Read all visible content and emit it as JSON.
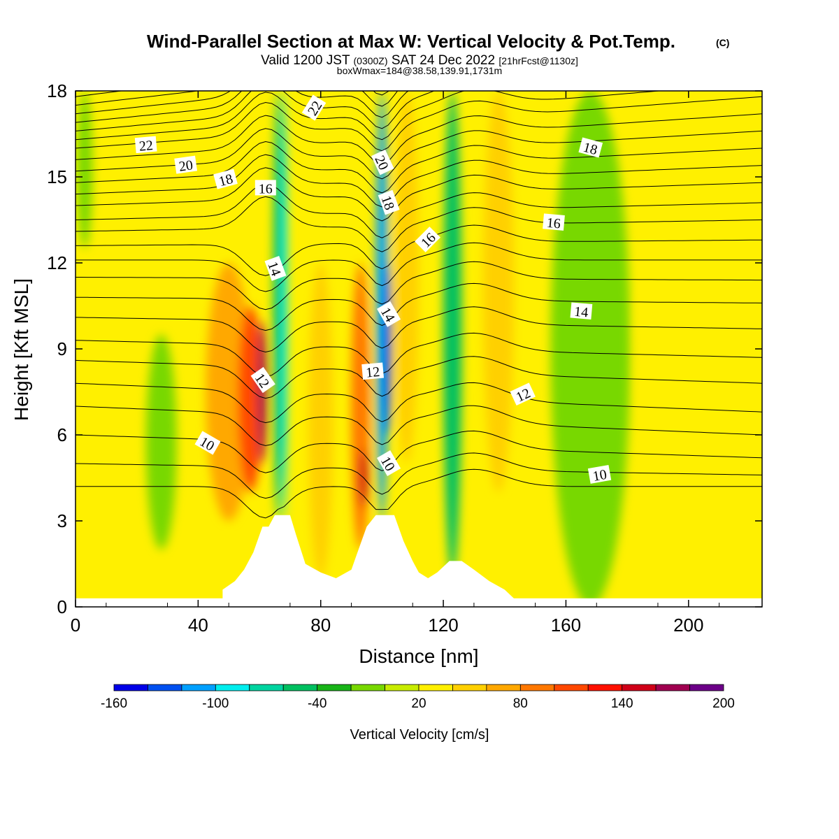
{
  "title": {
    "main": "Wind-Parallel Section at Max W: Vertical Velocity & Pot.Temp.",
    "copyright": "(C)",
    "valid_prefix": "Valid 1200 JST",
    "valid_z": "(0300Z)",
    "valid_date": "SAT 24 Dec 2022",
    "forecast": "[21hrFcst@1130z]",
    "boxmax": "boxWmax=184@38.58,139.91,1731m"
  },
  "chart_data": {
    "type": "heatmap",
    "xlabel": "Distance [nm]",
    "ylabel": "Height [Kft MSL]",
    "xlim": [
      0,
      224
    ],
    "ylim": [
      0,
      18
    ],
    "x_ticks": [
      0,
      40,
      80,
      120,
      160,
      200
    ],
    "y_ticks": [
      0,
      3,
      6,
      9,
      12,
      15,
      18
    ],
    "background_value": 20,
    "w_bands": [
      {
        "x": 3,
        "y0": 12.5,
        "y1": 18,
        "w": 5,
        "value": -20
      },
      {
        "x": 28,
        "y0": 2,
        "y1": 9.5,
        "w": 10,
        "value": -20
      },
      {
        "x": 50,
        "y0": 3,
        "y1": 12,
        "w": 15,
        "value": 60
      },
      {
        "x": 57,
        "y0": 4,
        "y1": 10.5,
        "w": 8,
        "value": 110
      },
      {
        "x": 61,
        "y0": 5,
        "y1": 10,
        "w": 3,
        "value": 175
      },
      {
        "x": 66,
        "y0": 3,
        "y1": 18,
        "w": 3,
        "value": -60
      },
      {
        "x": 68,
        "y0": 3,
        "y1": 18,
        "w": 2,
        "value": -90
      },
      {
        "x": 80,
        "y0": 1,
        "y1": 12,
        "w": 8,
        "value": 40
      },
      {
        "x": 93,
        "y0": 2,
        "y1": 12,
        "w": 6,
        "value": 80
      },
      {
        "x": 94,
        "y0": 3.5,
        "y1": 5.5,
        "w": 3,
        "value": 140
      },
      {
        "x": 100,
        "y0": 3,
        "y1": 18,
        "w": 4,
        "value": -120
      },
      {
        "x": 102,
        "y0": 6,
        "y1": 12,
        "w": 2,
        "value": -150
      },
      {
        "x": 108,
        "y0": 5,
        "y1": 18,
        "w": 8,
        "value": 50
      },
      {
        "x": 123,
        "y0": 1,
        "y1": 18,
        "w": 6,
        "value": -60
      },
      {
        "x": 138,
        "y0": 4,
        "y1": 18,
        "w": 10,
        "value": 50
      },
      {
        "x": 168,
        "y0": 0,
        "y1": 18,
        "w": 26,
        "value": -20
      },
      {
        "x": 185,
        "y0": 7,
        "y1": 11,
        "w": 4,
        "value": 30
      },
      {
        "x": 200,
        "y0": 7,
        "y1": 10,
        "w": 4,
        "value": 30
      }
    ],
    "terrain": {
      "x": [
        0,
        48,
        48,
        52,
        55,
        58,
        61,
        63,
        65,
        66,
        70,
        72,
        75,
        80,
        85,
        90,
        92,
        95,
        98,
        101,
        104,
        107,
        110,
        112,
        115,
        118,
        122,
        126,
        130,
        135,
        140,
        143,
        143,
        224
      ],
      "y": [
        0.3,
        0.3,
        0.6,
        0.9,
        1.3,
        1.9,
        2.8,
        2.8,
        3.2,
        3.2,
        3.2,
        2.5,
        1.5,
        1.2,
        1.0,
        1.3,
        1.9,
        2.8,
        3.2,
        3.2,
        3.2,
        2.3,
        1.6,
        1.2,
        1.0,
        1.2,
        1.6,
        1.6,
        1.3,
        0.9,
        0.6,
        0.3,
        0.3,
        0.3
      ]
    },
    "isentropes": [
      {
        "k": 9,
        "base": 4.2,
        "slope": 0.0
      },
      {
        "k": 9.5,
        "base": 5.0,
        "slope": -0.4
      },
      {
        "k": 10,
        "base": 6.0,
        "slope": -0.8
      },
      {
        "k": 10.5,
        "base": 7.0,
        "slope": -1.0
      },
      {
        "k": 11,
        "base": 7.8,
        "slope": -1.0
      },
      {
        "k": 11.5,
        "base": 8.6,
        "slope": -0.8
      },
      {
        "k": 12,
        "base": 9.3,
        "slope": -0.6
      },
      {
        "k": 12.5,
        "base": 10.1,
        "slope": -0.4
      },
      {
        "k": 13,
        "base": 10.8,
        "slope": -0.2
      },
      {
        "k": 13.5,
        "base": 11.5,
        "slope": -0.1
      },
      {
        "k": 14,
        "base": 12.1,
        "slope": 0.0
      },
      {
        "k": 14.5,
        "base": 12.6,
        "slope": 0.2
      },
      {
        "k": 15,
        "base": 13.1,
        "slope": 0.4
      },
      {
        "k": 15.5,
        "base": 13.5,
        "slope": 0.6
      },
      {
        "k": 16,
        "base": 14.0,
        "slope": 0.8
      },
      {
        "k": 16.5,
        "base": 14.4,
        "slope": 1.0
      },
      {
        "k": 17,
        "base": 14.8,
        "slope": 1.2
      },
      {
        "k": 17.5,
        "base": 15.2,
        "slope": 1.4
      },
      {
        "k": 18,
        "base": 15.6,
        "slope": 1.6
      },
      {
        "k": 18.5,
        "base": 16.0,
        "slope": 1.8
      },
      {
        "k": 19,
        "base": 16.3,
        "slope": 2.0
      },
      {
        "k": 19.5,
        "base": 16.6,
        "slope": 2.2
      },
      {
        "k": 20,
        "base": 16.9,
        "slope": 2.4
      },
      {
        "k": 20.5,
        "base": 17.2,
        "slope": 2.6
      },
      {
        "k": 21,
        "base": 17.5,
        "slope": 2.8
      },
      {
        "k": 21.5,
        "base": 17.8,
        "slope": 3.0
      },
      {
        "k": 22,
        "base": 18.1,
        "slope": 3.2
      }
    ],
    "contour_labels": [
      {
        "text": "22",
        "x": 23,
        "y": 16.1,
        "angle": -5
      },
      {
        "text": "20",
        "x": 36,
        "y": 15.4,
        "angle": -8
      },
      {
        "text": "18",
        "x": 49,
        "y": 14.9,
        "angle": -15
      },
      {
        "text": "16",
        "x": 62,
        "y": 14.6,
        "angle": 0
      },
      {
        "text": "22",
        "x": 78,
        "y": 17.4,
        "angle": -58
      },
      {
        "text": "20",
        "x": 100,
        "y": 15.5,
        "angle": 65
      },
      {
        "text": "18",
        "x": 102,
        "y": 14.1,
        "angle": 70
      },
      {
        "text": "16",
        "x": 115,
        "y": 12.8,
        "angle": -45
      },
      {
        "text": "14",
        "x": 65,
        "y": 11.8,
        "angle": 70
      },
      {
        "text": "14",
        "x": 102,
        "y": 10.2,
        "angle": 60
      },
      {
        "text": "12",
        "x": 61,
        "y": 7.9,
        "angle": 55
      },
      {
        "text": "12",
        "x": 97,
        "y": 8.2,
        "angle": -5
      },
      {
        "text": "10",
        "x": 43,
        "y": 5.7,
        "angle": 30
      },
      {
        "text": "10",
        "x": 102,
        "y": 5.0,
        "angle": 60
      },
      {
        "text": "18",
        "x": 168,
        "y": 16.0,
        "angle": 15
      },
      {
        "text": "16",
        "x": 156,
        "y": 13.4,
        "angle": 5
      },
      {
        "text": "14",
        "x": 165,
        "y": 10.3,
        "angle": 5
      },
      {
        "text": "12",
        "x": 146,
        "y": 7.4,
        "angle": -25
      },
      {
        "text": "10",
        "x": 171,
        "y": 4.6,
        "angle": -10
      }
    ]
  },
  "colorbar": {
    "label": "Vertical Velocity [cm/s]",
    "tick_labels": [
      "-160",
      "-100",
      "-40",
      "20",
      "80",
      "140",
      "200"
    ],
    "min": -160,
    "max": 200,
    "step": 20,
    "colors": [
      "#0000e8",
      "#0050f0",
      "#00a0ff",
      "#00eeee",
      "#00d4a0",
      "#00c060",
      "#18b418",
      "#78d800",
      "#c8ec00",
      "#fff000",
      "#ffd000",
      "#ffa800",
      "#ff7800",
      "#ff4800",
      "#ff1000",
      "#d00018",
      "#a00050",
      "#6c0088"
    ]
  }
}
